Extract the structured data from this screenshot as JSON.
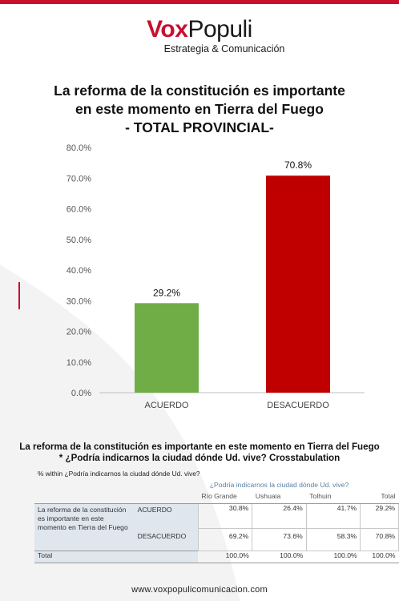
{
  "brand": {
    "name_part1": "Vox",
    "name_part2": "Populi",
    "tagline": "Estrategia & Comunicación",
    "accent_color": "#c8102e"
  },
  "title_lines": [
    "La reforma de la constitución es importante",
    "en este momento en Tierra del Fuego",
    "- TOTAL PROVINCIAL-"
  ],
  "chart_data": {
    "type": "bar",
    "categories": [
      "ACUERDO",
      "DESACUERDO"
    ],
    "values": [
      29.2,
      70.8
    ],
    "value_labels": [
      "29.2%",
      "70.8%"
    ],
    "colors": [
      "#70ad47",
      "#c00000"
    ],
    "ylim": [
      0,
      80
    ],
    "yticks": [
      "0.0%",
      "10.0%",
      "20.0%",
      "30.0%",
      "40.0%",
      "50.0%",
      "60.0%",
      "70.0%",
      "80.0%"
    ],
    "grid": false
  },
  "crosstab": {
    "title_lines": [
      "La reforma de la constitución es importante en este momento en Tierra del Fuego",
      "* ¿Podría indicarnos la ciudad dónde Ud. vive? Crosstabulation"
    ],
    "note": "% within ¿Podría indicarnos la ciudad dónde Ud. vive?",
    "group_header": "¿Podría indicarnos la ciudad dónde Ud. vive?",
    "columns": [
      "Río Grande",
      "Ushuaia",
      "Tolhuin",
      "Total"
    ],
    "row_label": "La reforma de la constitución es importante en este momento en Tierra del Fuego",
    "rows": [
      {
        "label": "ACUERDO",
        "values": [
          "30.8%",
          "26.4%",
          "41.7%",
          "29.2%"
        ]
      },
      {
        "label": "DESACUERDO",
        "values": [
          "69.2%",
          "73.6%",
          "58.3%",
          "70.8%"
        ]
      }
    ],
    "total_row": {
      "label": "Total",
      "values": [
        "100.0%",
        "100.0%",
        "100.0%",
        "100.0%"
      ]
    }
  },
  "footer": "www.voxpopulicomunicacion.com"
}
